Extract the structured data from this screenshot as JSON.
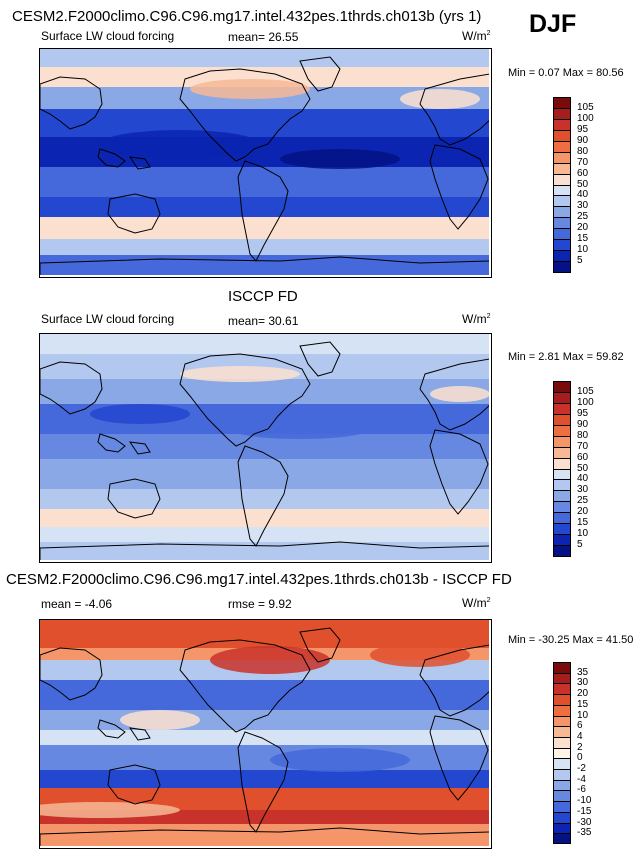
{
  "season": "DJF",
  "panels": [
    {
      "title": "CESM2.F2000climo.C96.C96.mg17.intel.432pes.1thrds.ch013b (yrs 1)",
      "variable": "Surface LW cloud forcing",
      "stat_label": "mean=",
      "stat_value": "26.55",
      "units": "W/m",
      "units_sup": "2",
      "min_label": "Min =",
      "min_value": "0.07",
      "max_label": "Max =",
      "max_value": "80.56",
      "colorbar_labels": [
        "105",
        "100",
        "95",
        "90",
        "80",
        "70",
        "60",
        "50",
        "40",
        "30",
        "25",
        "20",
        "15",
        "10",
        "5"
      ],
      "colorbar_colors": [
        "#7a0b0b",
        "#a51d1d",
        "#c9322a",
        "#e0502d",
        "#ef6e40",
        "#f5956a",
        "#f7b896",
        "#fbe0cf",
        "#d6e3f5",
        "#b3c8ef",
        "#8aa8e6",
        "#6688e0",
        "#4568db",
        "#2347cf",
        "#0b25b2",
        "#041283"
      ]
    },
    {
      "title": "ISCCP FD",
      "variable": "Surface LW cloud forcing",
      "stat_label": "mean=",
      "stat_value": "30.61",
      "units": "W/m",
      "units_sup": "2",
      "min_label": "Min =",
      "min_value": "2.81",
      "max_label": "Max =",
      "max_value": "59.82",
      "colorbar_labels": [
        "105",
        "100",
        "95",
        "90",
        "80",
        "70",
        "60",
        "50",
        "40",
        "30",
        "25",
        "20",
        "15",
        "10",
        "5"
      ],
      "colorbar_colors": [
        "#7a0b0b",
        "#a51d1d",
        "#c9322a",
        "#e0502d",
        "#ef6e40",
        "#f5956a",
        "#f7b896",
        "#fbe0cf",
        "#d6e3f5",
        "#b3c8ef",
        "#8aa8e6",
        "#6688e0",
        "#4568db",
        "#2347cf",
        "#0b25b2",
        "#041283"
      ]
    },
    {
      "title": "CESM2.F2000climo.C96.C96.mg17.intel.432pes.1thrds.ch013b - ISCCP FD",
      "stat_label": "mean =",
      "stat_value": "-4.06",
      "stat2_label": "rmse =",
      "stat2_value": "9.92",
      "units": "W/m",
      "units_sup": "2",
      "min_label": "Min =",
      "min_value": "-30.25",
      "max_label": "Max =",
      "max_value": "41.50",
      "colorbar_labels": [
        "35",
        "30",
        "20",
        "15",
        "10",
        "6",
        "4",
        "2",
        "0",
        "-2",
        "-4",
        "-6",
        "-10",
        "-15",
        "-30",
        "-35"
      ],
      "colorbar_colors": [
        "#7a0b0b",
        "#a51d1d",
        "#c9322a",
        "#e0502d",
        "#ef6e40",
        "#f5956a",
        "#f7b896",
        "#fbe0cf",
        "#fff3ea",
        "#d6e3f5",
        "#b3c8ef",
        "#8aa8e6",
        "#6688e0",
        "#4568db",
        "#2347cf",
        "#0b25b2",
        "#041283"
      ]
    }
  ]
}
